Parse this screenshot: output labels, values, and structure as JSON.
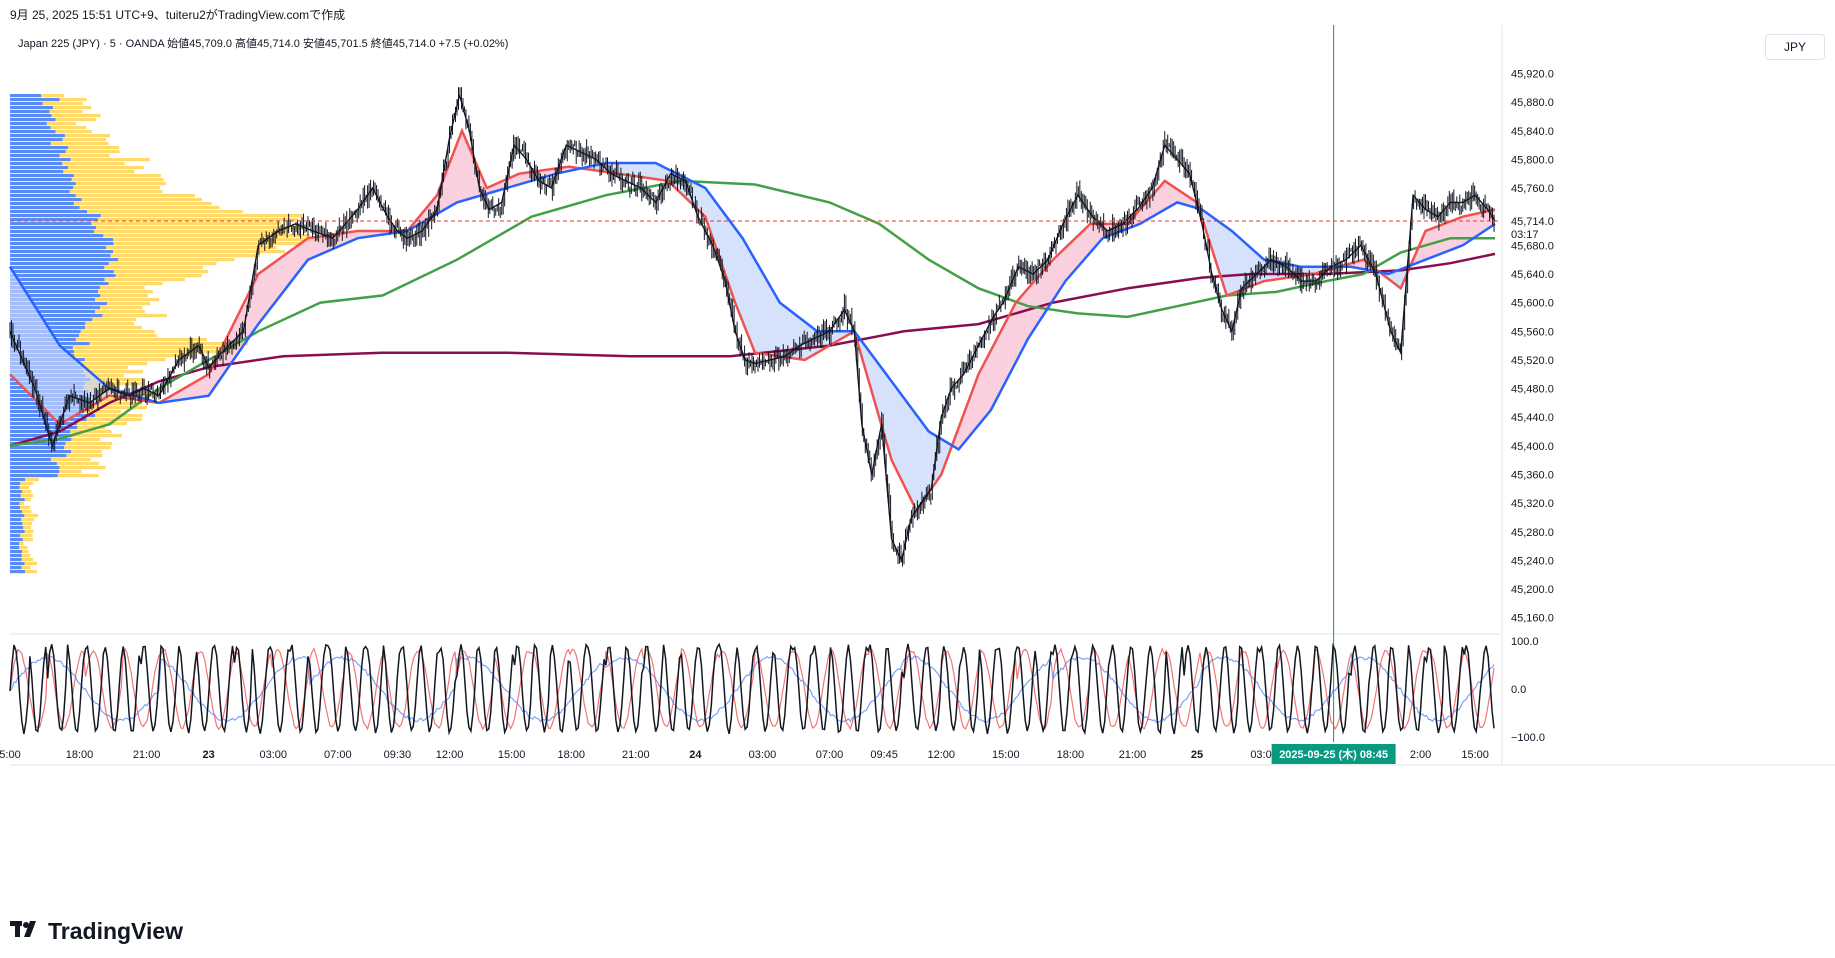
{
  "header": {
    "text": "9月 25, 2025 15:51 UTC+9、tuiteru2がTradingView.comで作成"
  },
  "legend": {
    "text": "Japan 225 (JPY) · 5 · OANDA  始値45,709.0  高値45,714.0  安値45,701.5  終値45,714.0  +7.5 (+0.02%)"
  },
  "currency_button": {
    "label": "JPY"
  },
  "logo": {
    "text": "TradingView"
  },
  "colors": {
    "price": "#131722",
    "ema_fast": "#ef5350",
    "ema_mid": "#2962ff",
    "ma_green": "#43a047",
    "ma_purple": "#880e4f",
    "vp_up": "#5b8bf7",
    "vp_down": "#ffd24f",
    "last_line": "#e53935",
    "cursor": "#089981",
    "osc_k": "#131722",
    "osc_d": "#ef5350",
    "osc_slow": "#5b8bf7"
  },
  "chart_data": [
    {
      "type": "line",
      "title": "Japan 225 (JPY) · 5 · OANDA",
      "ylabel": "JPY",
      "ylim": [
        45140,
        45950
      ],
      "y_ticks": [
        "45,920.0",
        "45,880.0",
        "45,840.0",
        "45,800.0",
        "45,760.0",
        "45,680.0",
        "45,640.0",
        "45,600.0",
        "45,560.0",
        "45,520.0",
        "45,480.0",
        "45,440.0",
        "45,400.0",
        "45,360.0",
        "45,320.0",
        "45,280.0",
        "45,240.0",
        "45,200.0",
        "45,160.0"
      ],
      "x_ticks": [
        "5:00",
        "18:00",
        "21:00",
        "23",
        "03:00",
        "07:00",
        "09:30",
        "12:00",
        "15:00",
        "18:00",
        "21:00",
        "24",
        "03:00",
        "07:00",
        "09:45",
        "12:00",
        "15:00",
        "18:00",
        "21:00",
        "25",
        "03:00",
        "2:00",
        "15:00"
      ],
      "last_price": {
        "value": 45714,
        "label": "45,714.0",
        "countdown": "03:17"
      },
      "cursor_label": "2025-09-25 (木)  08:45",
      "series": [
        {
          "role": "price",
          "points": [
            [
              0,
              45560
            ],
            [
              10,
              45480
            ],
            [
              17,
              45400
            ],
            [
              24,
              45470
            ],
            [
              32,
              45460
            ],
            [
              40,
              45480
            ],
            [
              48,
              45470
            ],
            [
              54,
              45480
            ],
            [
              60,
              45470
            ],
            [
              68,
              45520
            ],
            [
              76,
              45540
            ],
            [
              80,
              45510
            ],
            [
              88,
              45540
            ],
            [
              94,
              45560
            ],
            [
              100,
              45680
            ],
            [
              108,
              45700
            ],
            [
              115,
              45710
            ],
            [
              122,
              45700
            ],
            [
              130,
              45690
            ],
            [
              135,
              45710
            ],
            [
              140,
              45730
            ],
            [
              146,
              45760
            ],
            [
              152,
              45720
            ],
            [
              156,
              45700
            ],
            [
              160,
              45690
            ],
            [
              166,
              45700
            ],
            [
              172,
              45730
            ],
            [
              177,
              45830
            ],
            [
              181,
              45890
            ],
            [
              185,
              45840
            ],
            [
              189,
              45760
            ],
            [
              193,
              45730
            ],
            [
              198,
              45740
            ],
            [
              203,
              45820
            ],
            [
              208,
              45800
            ],
            [
              213,
              45770
            ],
            [
              218,
              45760
            ],
            [
              224,
              45820
            ],
            [
              230,
              45810
            ],
            [
              236,
              45800
            ],
            [
              242,
              45780
            ],
            [
              248,
              45770
            ],
            [
              254,
              45760
            ],
            [
              260,
              45740
            ],
            [
              266,
              45780
            ],
            [
              272,
              45770
            ],
            [
              277,
              45720
            ],
            [
              283,
              45680
            ],
            [
              288,
              45630
            ],
            [
              292,
              45560
            ],
            [
              296,
              45520
            ],
            [
              300,
              45515
            ],
            [
              306,
              45520
            ],
            [
              312,
              45525
            ],
            [
              318,
              45540
            ],
            [
              324,
              45550
            ],
            [
              330,
              45560
            ],
            [
              336,
              45590
            ],
            [
              340,
              45560
            ],
            [
              343,
              45430
            ],
            [
              347,
              45360
            ],
            [
              351,
              45430
            ],
            [
              355,
              45270
            ],
            [
              359,
              45240
            ],
            [
              363,
              45300
            ],
            [
              367,
              45320
            ],
            [
              371,
              45340
            ],
            [
              375,
              45440
            ],
            [
              379,
              45480
            ],
            [
              384,
              45500
            ],
            [
              390,
              45540
            ],
            [
              396,
              45580
            ],
            [
              400,
              45600
            ],
            [
              406,
              45650
            ],
            [
              412,
              45640
            ],
            [
              418,
              45660
            ],
            [
              424,
              45710
            ],
            [
              430,
              45750
            ],
            [
              436,
              45720
            ],
            [
              442,
              45700
            ],
            [
              448,
              45710
            ],
            [
              454,
              45730
            ],
            [
              460,
              45760
            ],
            [
              465,
              45820
            ],
            [
              470,
              45800
            ],
            [
              475,
              45780
            ],
            [
              480,
              45710
            ],
            [
              484,
              45640
            ],
            [
              488,
              45590
            ],
            [
              492,
              45560
            ],
            [
              496,
              45620
            ],
            [
              502,
              45640
            ],
            [
              508,
              45660
            ],
            [
              514,
              45650
            ],
            [
              520,
              45630
            ],
            [
              526,
              45630
            ],
            [
              532,
              45650
            ],
            [
              538,
              45660
            ],
            [
              544,
              45680
            ],
            [
              550,
              45640
            ],
            [
              556,
              45560
            ],
            [
              560,
              45530
            ],
            [
              565,
              45750
            ],
            [
              570,
              45730
            ],
            [
              575,
              45720
            ],
            [
              580,
              45740
            ],
            [
              585,
              45740
            ],
            [
              590,
              45750
            ],
            [
              595,
              45730
            ],
            [
              598,
              45714
            ]
          ]
        },
        {
          "role": "ema-fast",
          "points": [
            [
              0,
              45500
            ],
            [
              20,
              45430
            ],
            [
              40,
              45470
            ],
            [
              60,
              45460
            ],
            [
              80,
              45500
            ],
            [
              100,
              45640
            ],
            [
              120,
              45690
            ],
            [
              140,
              45700
            ],
            [
              160,
              45700
            ],
            [
              172,
              45750
            ],
            [
              182,
              45840
            ],
            [
              192,
              45760
            ],
            [
              205,
              45780
            ],
            [
              225,
              45790
            ],
            [
              245,
              45780
            ],
            [
              265,
              45770
            ],
            [
              280,
              45720
            ],
            [
              292,
              45600
            ],
            [
              300,
              45530
            ],
            [
              320,
              45520
            ],
            [
              340,
              45560
            ],
            [
              355,
              45380
            ],
            [
              365,
              45310
            ],
            [
              375,
              45360
            ],
            [
              390,
              45500
            ],
            [
              405,
              45600
            ],
            [
              420,
              45660
            ],
            [
              435,
              45710
            ],
            [
              450,
              45710
            ],
            [
              465,
              45770
            ],
            [
              478,
              45740
            ],
            [
              490,
              45610
            ],
            [
              505,
              45630
            ],
            [
              525,
              45640
            ],
            [
              545,
              45660
            ],
            [
              560,
              45620
            ],
            [
              570,
              45700
            ],
            [
              585,
              45720
            ],
            [
              598,
              45730
            ]
          ]
        },
        {
          "role": "ema-mid",
          "points": [
            [
              0,
              45650
            ],
            [
              20,
              45540
            ],
            [
              40,
              45480
            ],
            [
              60,
              45460
            ],
            [
              80,
              45470
            ],
            [
              100,
              45570
            ],
            [
              120,
              45660
            ],
            [
              140,
              45690
            ],
            [
              160,
              45700
            ],
            [
              180,
              45740
            ],
            [
              200,
              45760
            ],
            [
              220,
              45780
            ],
            [
              240,
              45795
            ],
            [
              260,
              45795
            ],
            [
              280,
              45760
            ],
            [
              295,
              45690
            ],
            [
              310,
              45600
            ],
            [
              325,
              45560
            ],
            [
              340,
              45560
            ],
            [
              355,
              45490
            ],
            [
              370,
              45420
            ],
            [
              382,
              45395
            ],
            [
              395,
              45450
            ],
            [
              410,
              45550
            ],
            [
              425,
              45630
            ],
            [
              440,
              45690
            ],
            [
              455,
              45710
            ],
            [
              470,
              45740
            ],
            [
              480,
              45730
            ],
            [
              492,
              45700
            ],
            [
              505,
              45660
            ],
            [
              520,
              45650
            ],
            [
              540,
              45650
            ],
            [
              555,
              45640
            ],
            [
              570,
              45660
            ],
            [
              585,
              45680
            ],
            [
              598,
              45710
            ]
          ]
        },
        {
          "role": "ma-green",
          "points": [
            [
              0,
              45400
            ],
            [
              20,
              45410
            ],
            [
              40,
              45430
            ],
            [
              60,
              45480
            ],
            [
              80,
              45520
            ],
            [
              100,
              45560
            ],
            [
              125,
              45600
            ],
            [
              150,
              45610
            ],
            [
              180,
              45660
            ],
            [
              210,
              45720
            ],
            [
              240,
              45750
            ],
            [
              270,
              45770
            ],
            [
              300,
              45765
            ],
            [
              330,
              45740
            ],
            [
              350,
              45710
            ],
            [
              370,
              45660
            ],
            [
              390,
              45620
            ],
            [
              410,
              45595
            ],
            [
              430,
              45585
            ],
            [
              450,
              45580
            ],
            [
              470,
              45595
            ],
            [
              490,
              45610
            ],
            [
              510,
              45615
            ],
            [
              530,
              45630
            ],
            [
              545,
              45640
            ],
            [
              560,
              45670
            ],
            [
              580,
              45690
            ],
            [
              598,
              45690
            ]
          ]
        },
        {
          "role": "ma-purple",
          "points": [
            [
              0,
              45400
            ],
            [
              20,
              45420
            ],
            [
              40,
              45460
            ],
            [
              60,
              45490
            ],
            [
              80,
              45510
            ],
            [
              110,
              45525
            ],
            [
              150,
              45530
            ],
            [
              200,
              45530
            ],
            [
              250,
              45525
            ],
            [
              290,
              45525
            ],
            [
              330,
              45540
            ],
            [
              360,
              45560
            ],
            [
              390,
              45570
            ],
            [
              420,
              45600
            ],
            [
              450,
              45620
            ],
            [
              480,
              45635
            ],
            [
              500,
              45640
            ],
            [
              530,
              45640
            ],
            [
              560,
              45645
            ],
            [
              580,
              45655
            ],
            [
              598,
              45668
            ]
          ]
        }
      ]
    },
    {
      "type": "line",
      "title": "",
      "ylim": [
        -110,
        110
      ],
      "y_ticks": [
        "100.0",
        "0.0",
        "−100.0"
      ],
      "series": [
        {
          "role": "osc-k",
          "period": 7.5,
          "amp": 90
        },
        {
          "role": "osc-d",
          "period": 15,
          "amp": 80
        },
        {
          "role": "osc-slow",
          "period": 60,
          "amp": 65
        }
      ]
    }
  ]
}
